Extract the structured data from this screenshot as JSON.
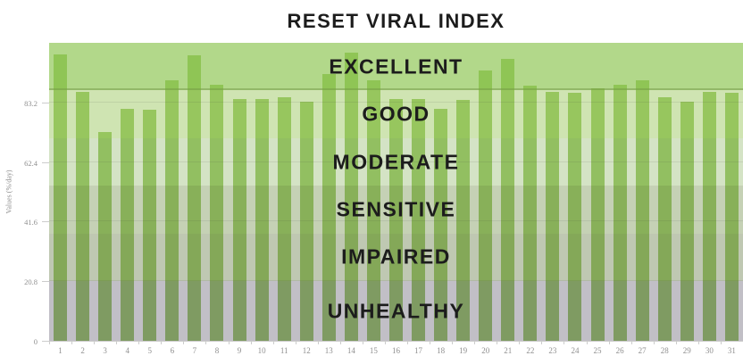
{
  "title": "RESET VIRAL INDEX",
  "y_axis": {
    "label": "Values (%/day)",
    "tick_labels": [
      "0",
      "20.8",
      "41.6",
      "62.4",
      "83.2"
    ]
  },
  "x_axis": {
    "labels": [
      "1",
      "2",
      "3",
      "4",
      "5",
      "6",
      "7",
      "8",
      "9",
      "10",
      "11",
      "12",
      "13",
      "14",
      "15",
      "16",
      "17",
      "18",
      "19",
      "20",
      "21",
      "22",
      "23",
      "24",
      "25",
      "26",
      "27",
      "28",
      "29",
      "30",
      "31"
    ]
  },
  "colors": {
    "bar": "#7eb93c",
    "axis_line": "#cccccc",
    "axis_text": "#8f8f8f",
    "title_text": "#1c1c1c",
    "band_excellent_overlay": "rgba(149,201,95,0.73)",
    "band_good_overlay": "rgba(171,208,120,0.57)",
    "band_moderate_overlay": "rgba(168,197,137,0.49)",
    "band_sensitive_overlay": "rgba(145,169,116,0.53)",
    "band_impaired_overlay": "rgba(137,153,112,0.54)",
    "band_unhealthy_overlay": "rgba(129,125,139,0.49)"
  },
  "chart_data": {
    "type": "bar",
    "title": "RESET VIRAL INDEX",
    "xlabel": "",
    "ylabel": "Values (%/day)",
    "ylim": [
      0,
      104
    ],
    "yticks": [
      0,
      20.8,
      41.6,
      62.4,
      83.2
    ],
    "grid": true,
    "legend": false,
    "bar_color": "#7eb93c",
    "categories": [
      "1",
      "2",
      "3",
      "4",
      "5",
      "6",
      "7",
      "8",
      "9",
      "10",
      "11",
      "12",
      "13",
      "14",
      "15",
      "16",
      "17",
      "18",
      "19",
      "20",
      "21",
      "22",
      "23",
      "24",
      "25",
      "26",
      "27",
      "28",
      "29",
      "30",
      "31"
    ],
    "values": [
      100,
      87,
      73,
      81,
      80.5,
      91,
      99.5,
      89.5,
      84.5,
      84.5,
      85,
      83.5,
      93,
      100.5,
      91,
      84.5,
      84.5,
      81,
      84,
      94.5,
      98.5,
      89,
      87,
      86.5,
      88,
      89.5,
      91,
      85,
      83.5,
      87,
      86.5
    ],
    "bands": [
      {
        "label": "EXCELLENT",
        "range": [
          87.36,
          104
        ],
        "overlay": "rgba(149,201,95,0.73)"
      },
      {
        "label": "GOOD",
        "range": [
          70.72,
          87.36
        ],
        "overlay": "rgba(171,208,120,0.57)"
      },
      {
        "label": "MODERATE",
        "range": [
          54.08,
          70.72
        ],
        "overlay": "rgba(168,197,137,0.49)"
      },
      {
        "label": "SENSITIVE",
        "range": [
          37.44,
          54.08
        ],
        "overlay": "rgba(145,169,116,0.53)"
      },
      {
        "label": "IMPAIRED",
        "range": [
          20.8,
          37.44
        ],
        "overlay": "rgba(137,153,112,0.54)"
      },
      {
        "label": "UNHEALTHY",
        "range": [
          0,
          20.8
        ],
        "overlay": "rgba(129,125,139,0.49)"
      }
    ]
  }
}
